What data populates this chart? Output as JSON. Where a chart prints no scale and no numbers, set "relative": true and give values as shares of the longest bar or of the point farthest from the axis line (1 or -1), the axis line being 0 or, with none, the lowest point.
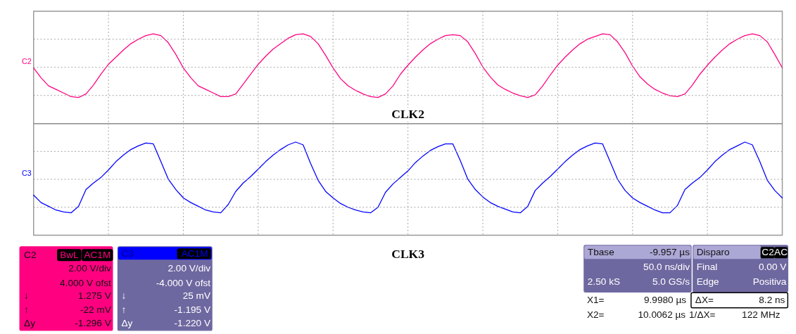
{
  "chart_data": [
    {
      "type": "line",
      "relative": true,
      "xlabel": "CLK2",
      "tick_labels": false,
      "grid": true,
      "categories": [
        null,
        null,
        null,
        null,
        null,
        null,
        null,
        null,
        null,
        null,
        null,
        null,
        null,
        null,
        null,
        null,
        null,
        null,
        null,
        null,
        null,
        null,
        null,
        null,
        null,
        null,
        null,
        null,
        null,
        null,
        null,
        null,
        null,
        null,
        null,
        null,
        null,
        null,
        null,
        null,
        null,
        null,
        null,
        null,
        null,
        null,
        null,
        null,
        null,
        null,
        null,
        null,
        null,
        null,
        null,
        null,
        null,
        null,
        null,
        null,
        null,
        null,
        null,
        null,
        null,
        null,
        null,
        null,
        null,
        null,
        null,
        null,
        null,
        null,
        null,
        null,
        null,
        null,
        null,
        null,
        null,
        null,
        null,
        null,
        null,
        null,
        null,
        null,
        null,
        null,
        null,
        null,
        null,
        null,
        null,
        null,
        null,
        null,
        null,
        null,
        null
      ],
      "series": [
        {
          "name": "C2",
          "color": "#ff0080",
          "values": [
            0.62,
            0.51,
            0.42,
            0.38,
            0.34,
            0.3,
            0.29,
            0.33,
            0.43,
            0.55,
            0.66,
            0.74,
            0.82,
            0.89,
            0.94,
            0.98,
            1.0,
            0.98,
            0.9,
            0.77,
            0.62,
            0.51,
            0.42,
            0.38,
            0.34,
            0.3,
            0.3,
            0.33,
            0.44,
            0.55,
            0.66,
            0.75,
            0.83,
            0.89,
            0.95,
            0.99,
            1.0,
            0.97,
            0.89,
            0.76,
            0.62,
            0.5,
            0.42,
            0.37,
            0.33,
            0.3,
            0.29,
            0.33,
            0.42,
            0.55,
            0.65,
            0.74,
            0.82,
            0.89,
            0.94,
            0.98,
            0.99,
            0.98,
            0.91,
            0.78,
            0.63,
            0.52,
            0.43,
            0.38,
            0.34,
            0.31,
            0.29,
            0.32,
            0.42,
            0.54,
            0.65,
            0.74,
            0.82,
            0.89,
            0.94,
            0.97,
            1.0,
            0.99,
            0.91,
            0.79,
            0.64,
            0.52,
            0.44,
            0.38,
            0.34,
            0.31,
            0.3,
            0.33,
            0.43,
            0.55,
            0.65,
            0.74,
            0.82,
            0.89,
            0.94,
            0.98,
            1.0,
            0.98,
            0.91,
            0.77,
            0.62
          ]
        }
      ]
    },
    {
      "type": "line",
      "relative": true,
      "xlabel": "CLK3",
      "tick_labels": false,
      "grid": true,
      "categories": [
        null,
        null,
        null,
        null,
        null,
        null,
        null,
        null,
        null,
        null,
        null,
        null,
        null,
        null,
        null,
        null,
        null,
        null,
        null,
        null,
        null,
        null,
        null,
        null,
        null,
        null,
        null,
        null,
        null,
        null,
        null,
        null,
        null,
        null,
        null,
        null,
        null,
        null,
        null,
        null,
        null,
        null,
        null,
        null,
        null,
        null,
        null,
        null,
        null,
        null,
        null,
        null,
        null,
        null,
        null,
        null,
        null,
        null,
        null,
        null,
        null,
        null,
        null,
        null,
        null,
        null,
        null,
        null,
        null,
        null,
        null,
        null,
        null,
        null,
        null,
        null,
        null,
        null,
        null,
        null,
        null,
        null,
        null,
        null,
        null,
        null,
        null,
        null,
        null,
        null,
        null,
        null,
        null,
        null,
        null,
        null,
        null,
        null,
        null,
        null,
        null
      ],
      "series": [
        {
          "name": "C3",
          "color": "#0000ff",
          "values": [
            0.43,
            0.35,
            0.31,
            0.27,
            0.25,
            0.24,
            0.31,
            0.49,
            0.56,
            0.62,
            0.7,
            0.79,
            0.86,
            0.92,
            0.96,
            0.99,
            0.98,
            0.79,
            0.6,
            0.49,
            0.4,
            0.35,
            0.31,
            0.27,
            0.25,
            0.24,
            0.33,
            0.47,
            0.56,
            0.63,
            0.71,
            0.79,
            0.86,
            0.92,
            0.97,
            1.0,
            0.97,
            0.77,
            0.59,
            0.47,
            0.4,
            0.34,
            0.3,
            0.27,
            0.25,
            0.24,
            0.3,
            0.46,
            0.55,
            0.62,
            0.69,
            0.78,
            0.85,
            0.91,
            0.95,
            0.98,
            0.98,
            0.8,
            0.6,
            0.49,
            0.41,
            0.35,
            0.31,
            0.28,
            0.25,
            0.24,
            0.31,
            0.48,
            0.56,
            0.63,
            0.71,
            0.79,
            0.86,
            0.92,
            0.96,
            0.99,
            0.98,
            0.79,
            0.6,
            0.48,
            0.4,
            0.35,
            0.31,
            0.27,
            0.24,
            0.24,
            0.32,
            0.49,
            0.56,
            0.62,
            0.7,
            0.79,
            0.86,
            0.92,
            0.96,
            1.0,
            0.97,
            0.79,
            0.59,
            0.48,
            0.4
          ]
        }
      ]
    },
    {
      "type": "other",
      "annotations": [
        "C2",
        "BwL",
        "AC1M",
        "2.00 V/div",
        "4.000 V ofst",
        "↓",
        "1.275 V",
        "↑",
        "-22 mV",
        "Δy",
        "-1.296 V",
        "C3",
        "AC1M",
        "2.00 V/div",
        "-4.000 V ofst",
        "↓",
        "25 mV",
        "↑",
        "-1.195 V",
        "Δy",
        "-1.220 V",
        "Tbase",
        "-9.957 µs",
        "50.0 ns/div",
        "2.50 kS",
        "5.0 GS/s",
        "Disparo",
        "C2",
        "AC",
        "Final",
        "0.00 V",
        "Edge",
        "Positiva",
        "X1=",
        "9.9980 µs",
        "ΔX=",
        "8.2 ns",
        "X2=",
        "10.0062 µs",
        "1/ΔX=",
        "122 MHz"
      ]
    }
  ]
}
